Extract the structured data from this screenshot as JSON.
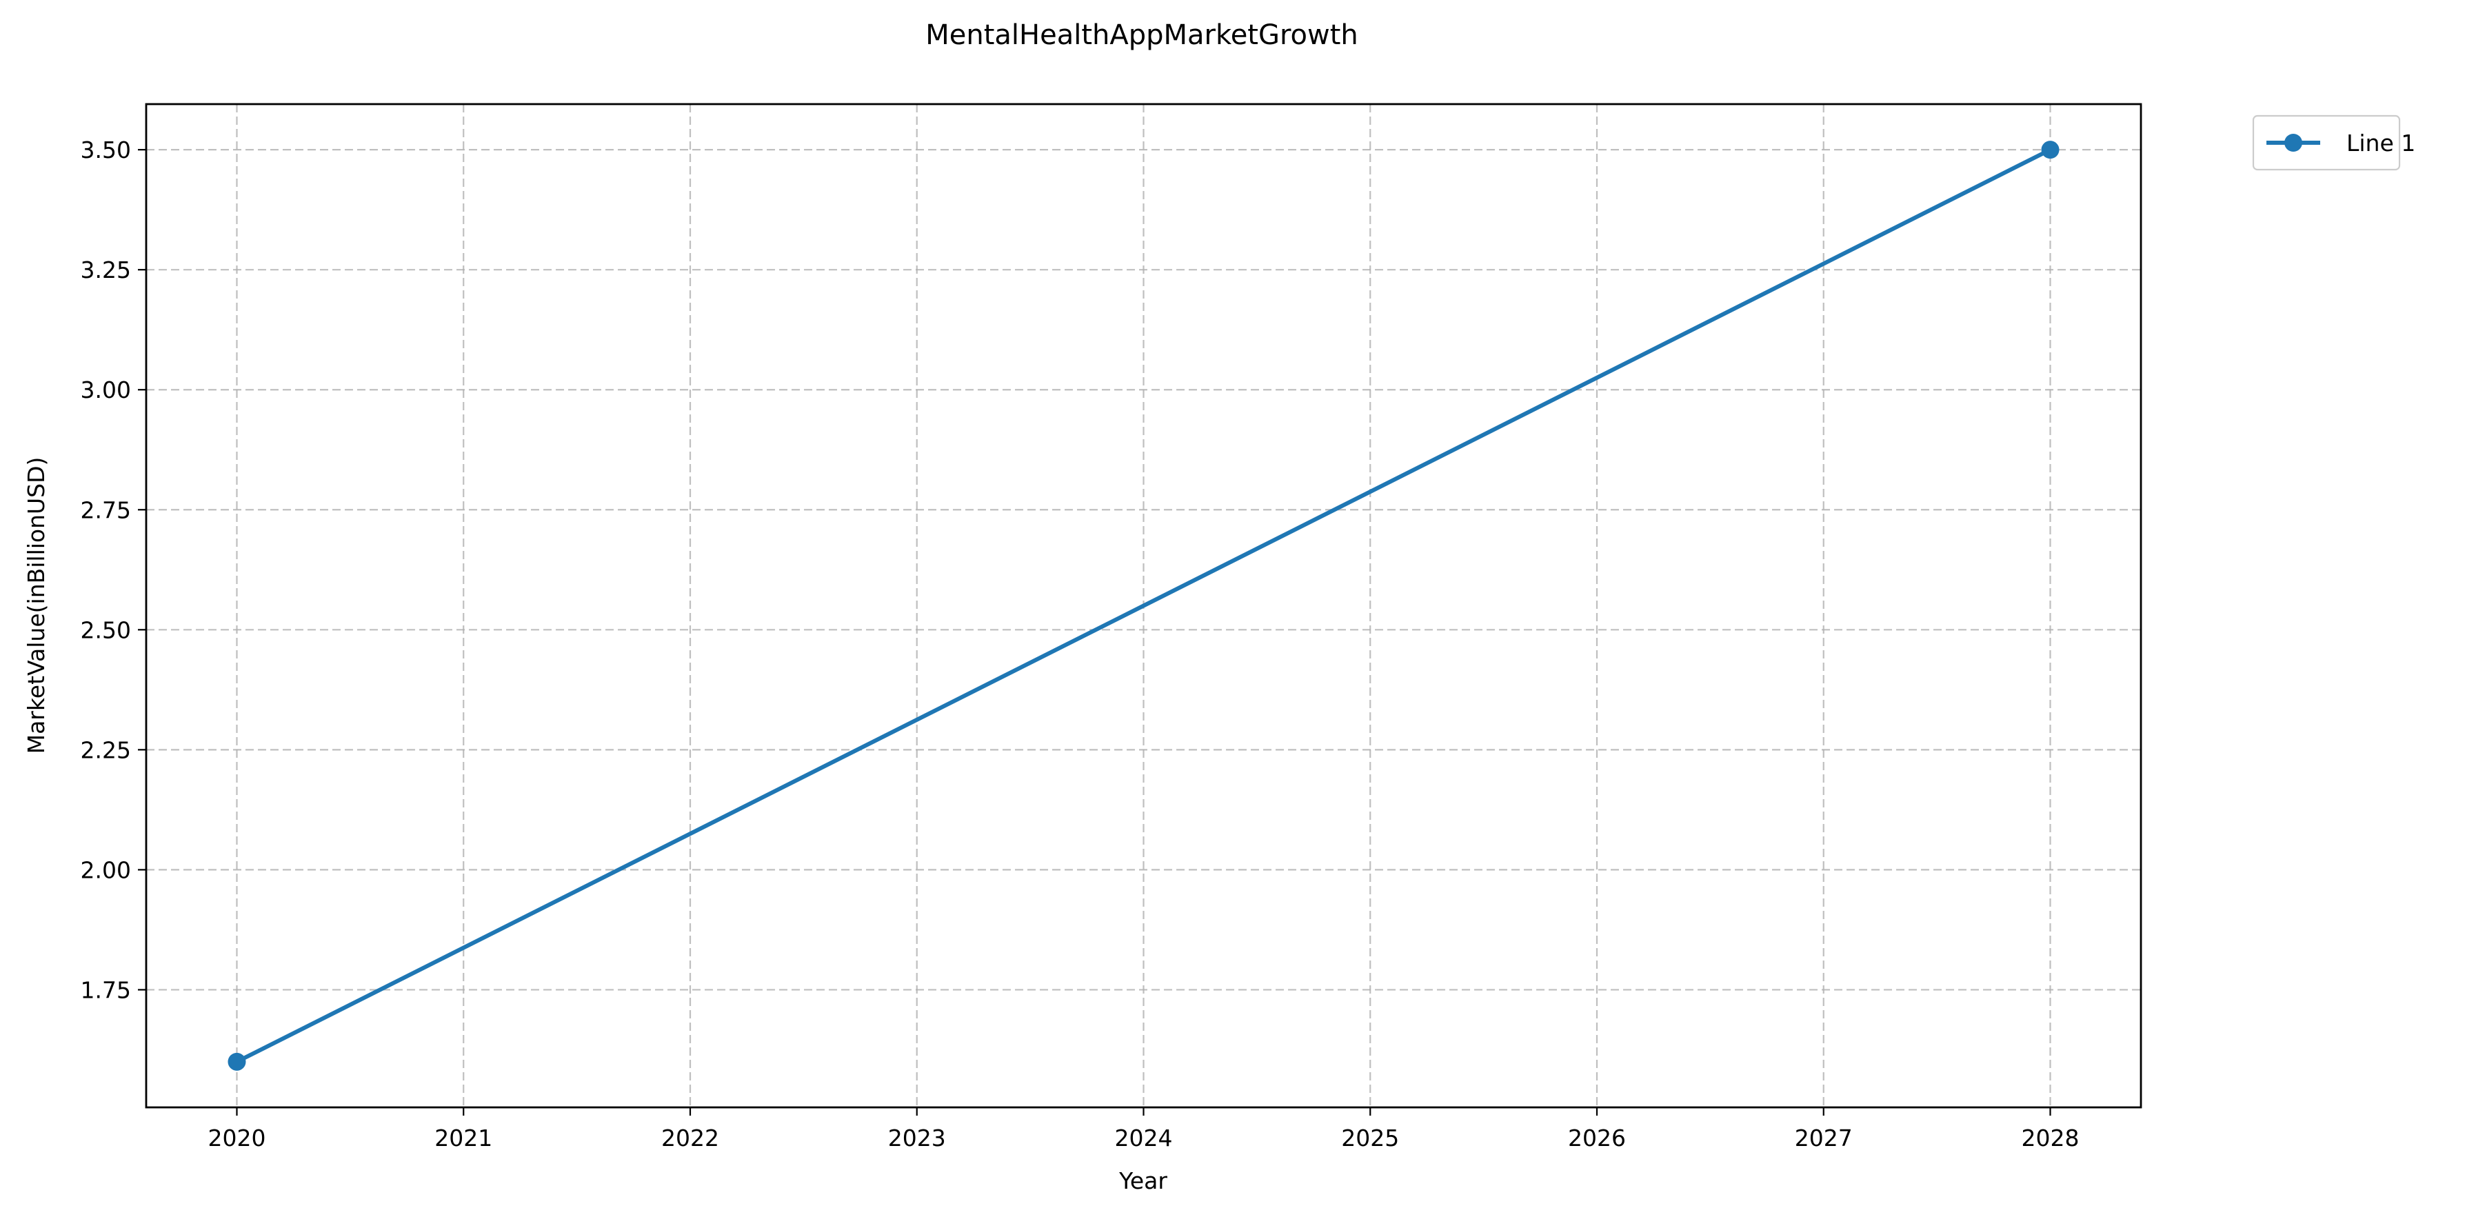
{
  "chart_data": {
    "type": "line",
    "title": "MentalHealthAppMarketGrowth",
    "xlabel": "Year",
    "ylabel": "MarketValue(inBillionUSD)",
    "x": [
      2020,
      2028
    ],
    "series": [
      {
        "name": "Line 1",
        "values": [
          1.6,
          3.5
        ],
        "color": "#1f77b4"
      }
    ],
    "xlim": [
      2019.6,
      2028.4
    ],
    "ylim": [
      1.505,
      3.595
    ],
    "xticks": [
      2020,
      2021,
      2022,
      2023,
      2024,
      2025,
      2026,
      2027,
      2028
    ],
    "xtick_labels": [
      "2020",
      "2021",
      "2022",
      "2023",
      "2024",
      "2025",
      "2026",
      "2027",
      "2028"
    ],
    "yticks": [
      1.75,
      2.0,
      2.25,
      2.5,
      2.75,
      3.0,
      3.25,
      3.5
    ],
    "ytick_labels": [
      "1.75",
      "2.00",
      "2.25",
      "2.50",
      "2.75",
      "3.00",
      "3.25",
      "3.50"
    ],
    "grid": true,
    "legend_placement": "outside-top-right"
  }
}
